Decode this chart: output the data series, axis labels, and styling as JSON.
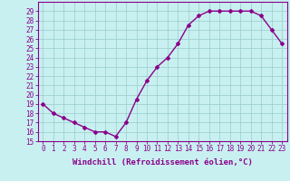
{
  "x": [
    0,
    1,
    2,
    3,
    4,
    5,
    6,
    7,
    8,
    9,
    10,
    11,
    12,
    13,
    14,
    15,
    16,
    17,
    18,
    19,
    20,
    21,
    22,
    23
  ],
  "y": [
    19,
    18,
    17.5,
    17,
    16.5,
    16,
    16,
    15.5,
    17,
    19.5,
    21.5,
    23,
    24,
    25.5,
    27.5,
    28.5,
    29,
    29,
    29,
    29,
    29,
    28.5,
    27,
    25.5
  ],
  "line_color": "#8b008b",
  "marker": "D",
  "marker_size": 2.0,
  "bg_color": "#c8f0f0",
  "grid_color": "#99cccc",
  "xlim": [
    -0.5,
    23.5
  ],
  "ylim": [
    15,
    30
  ],
  "ytick_min": 15,
  "ytick_max": 29,
  "ytick_step": 1,
  "xtick_labels": [
    "0",
    "1",
    "2",
    "3",
    "4",
    "5",
    "6",
    "7",
    "8",
    "9",
    "10",
    "11",
    "12",
    "13",
    "14",
    "15",
    "16",
    "17",
    "18",
    "19",
    "20",
    "21",
    "22",
    "23"
  ],
  "xlabel": "Windchill (Refroidissement éolien,°C)",
  "xlabel_fontsize": 6.5,
  "tick_fontsize": 5.5,
  "line_width": 1.0
}
